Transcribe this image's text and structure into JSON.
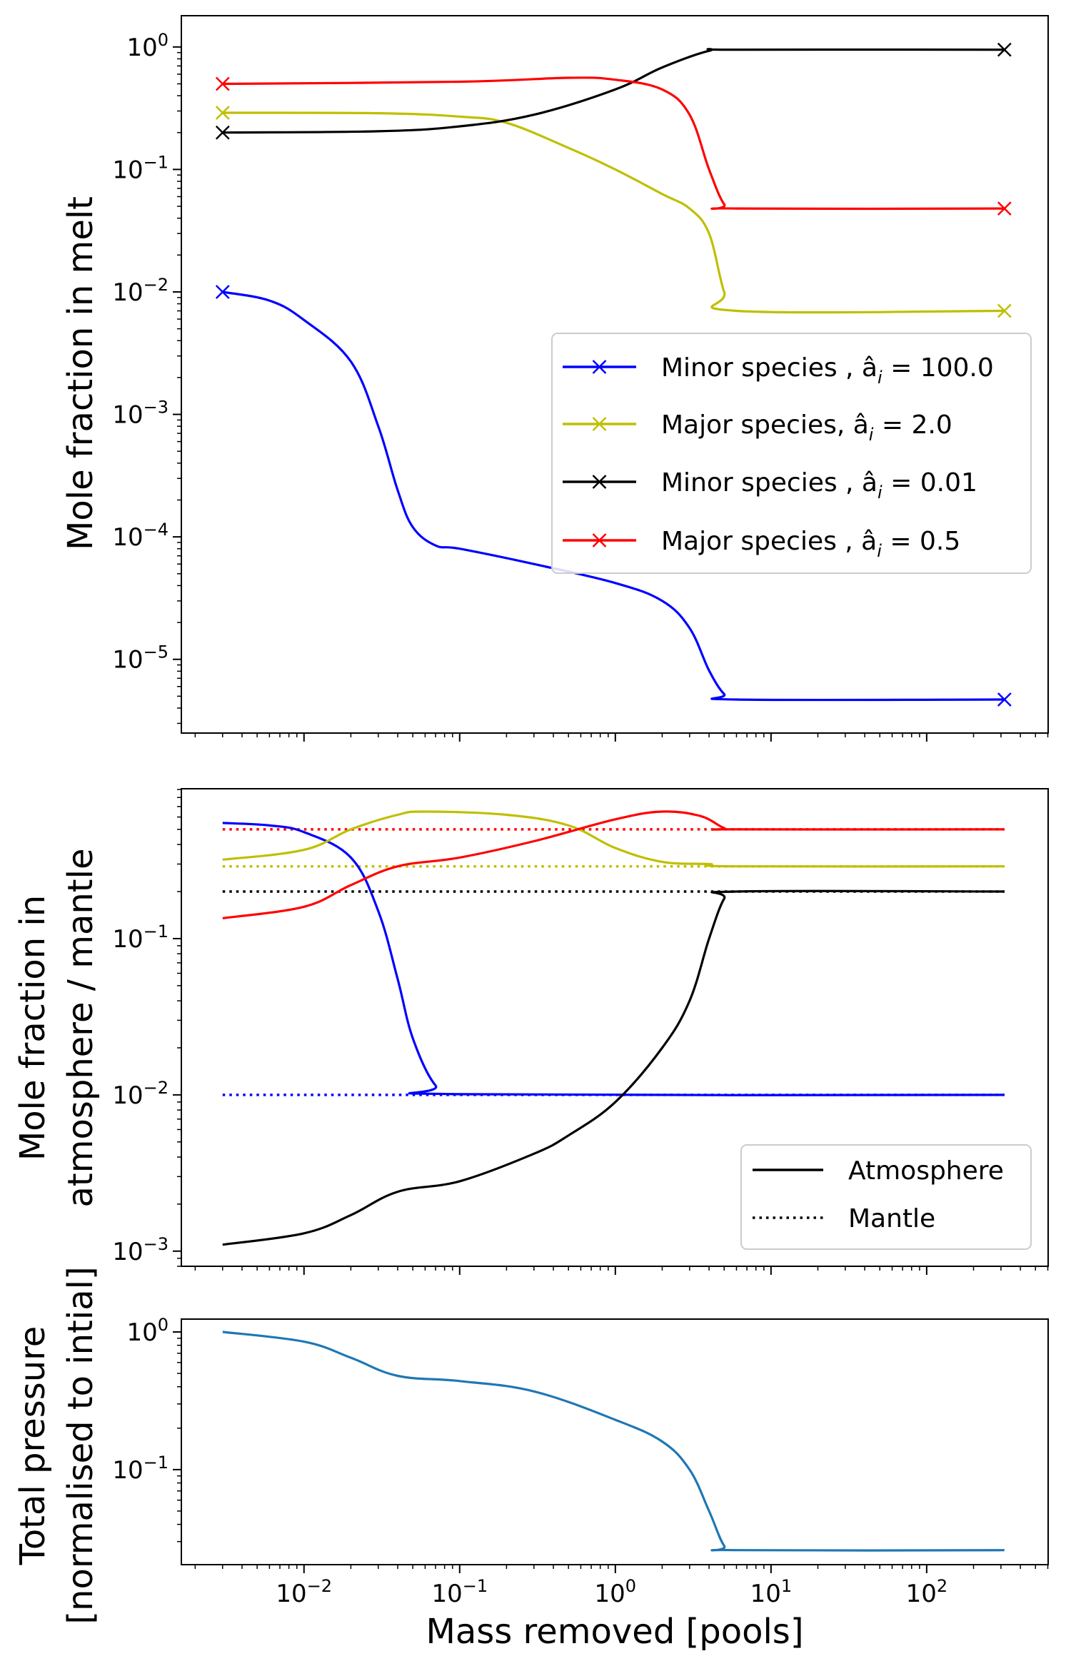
{
  "chart_data": [
    {
      "type": "line",
      "id": "melt",
      "ylabel": [
        "Mole fraction in melt"
      ],
      "xscale": "log",
      "yscale": "log",
      "xlim": [
        0.00163,
        603
      ],
      "ylim": [
        2.5e-06,
        1.8
      ],
      "yticks": [
        {
          "v": 1,
          "e": "0"
        },
        {
          "v": 0.1,
          "e": "−1"
        },
        {
          "v": 0.01,
          "e": "−2"
        },
        {
          "v": 0.001,
          "e": "−3"
        },
        {
          "v": 0.0001,
          "e": "−4"
        },
        {
          "v": 1e-05,
          "e": "−5"
        }
      ],
      "show_xtick_labels": false,
      "legend": {
        "placement": "center-right",
        "entries": [
          {
            "label": "Minor species , â",
            "sub": "i",
            "value": " = 100.0",
            "color": "#0000ff",
            "style": "solid-x"
          },
          {
            "label": "Major species, â",
            "sub": "i",
            "value": " = 2.0",
            "color": "#bfbf00",
            "style": "solid-x"
          },
          {
            "label": "Minor species , â",
            "sub": "i",
            "value": " = 0.01",
            "color": "#000000",
            "style": "solid-x"
          },
          {
            "label": "Major species , â",
            "sub": "i",
            "value": " = 0.5",
            "color": "#ff0000",
            "style": "solid-x"
          }
        ]
      },
      "series": [
        {
          "name": "Minor species a=100.0",
          "color": "#0000ff",
          "style": "solid",
          "endmarkers": true,
          "x": [
            0.003,
            0.006,
            0.01,
            0.02,
            0.03,
            0.04,
            0.05,
            0.07,
            0.1,
            0.3,
            1,
            2,
            3,
            4,
            5,
            6,
            316
          ],
          "y": [
            0.01,
            0.0085,
            0.0059,
            0.0027,
            0.0008,
            0.00024,
            0.00012,
            8.5e-05,
            8e-05,
            6e-05,
            4.2e-05,
            3e-05,
            1.8e-05,
            8.1e-06,
            5.2e-06,
            4.7e-06,
            4.7e-06
          ]
        },
        {
          "name": "Major species a=2.0",
          "color": "#bfbf00",
          "style": "solid",
          "endmarkers": true,
          "x": [
            0.003,
            0.03,
            0.1,
            0.2,
            0.5,
            1,
            2,
            3,
            4,
            5,
            6,
            316
          ],
          "y": [
            0.29,
            0.288,
            0.27,
            0.24,
            0.15,
            0.1,
            0.063,
            0.048,
            0.03,
            0.01,
            0.007,
            0.007
          ]
        },
        {
          "name": "Minor species a=0.01",
          "color": "#000000",
          "style": "solid",
          "endmarkers": true,
          "x": [
            0.003,
            0.03,
            0.1,
            0.3,
            1,
            2,
            4,
            6,
            316
          ],
          "y": [
            0.2,
            0.205,
            0.225,
            0.28,
            0.45,
            0.68,
            0.93,
            0.95,
            0.95
          ]
        },
        {
          "name": "Major species a=0.5",
          "color": "#ff0000",
          "style": "solid",
          "endmarkers": true,
          "x": [
            0.003,
            0.1,
            0.5,
            1,
            2,
            3,
            4,
            5,
            6,
            316
          ],
          "y": [
            0.5,
            0.52,
            0.56,
            0.54,
            0.45,
            0.28,
            0.1,
            0.052,
            0.048,
            0.048
          ]
        }
      ]
    },
    {
      "type": "line",
      "id": "atmosphere",
      "ylabel": [
        "Mole fraction in",
        "atmosphere / mantle"
      ],
      "xscale": "log",
      "yscale": "log",
      "xlim": [
        0.00163,
        603
      ],
      "ylim": [
        0.0008,
        0.91
      ],
      "yticks": [
        {
          "v": 0.1,
          "e": "−1"
        },
        {
          "v": 0.01,
          "e": "−2"
        },
        {
          "v": 0.001,
          "e": "−3"
        }
      ],
      "show_xtick_labels": false,
      "legend": {
        "placement": "lower-right",
        "entries": [
          {
            "label": "Atmosphere",
            "color": "#000000",
            "style": "solid"
          },
          {
            "label": "Mantle",
            "color": "#000000",
            "style": "dotted"
          }
        ]
      },
      "series": [
        {
          "name": "Minor a=100.0 mantle",
          "color": "#0000ff",
          "style": "dotted",
          "x": [
            0.003,
            316
          ],
          "y": [
            0.01,
            0.01
          ]
        },
        {
          "name": "Major a=2.0 mantle",
          "color": "#bfbf00",
          "style": "dotted",
          "x": [
            0.003,
            316
          ],
          "y": [
            0.29,
            0.29
          ]
        },
        {
          "name": "Minor a=0.01 mantle",
          "color": "#000000",
          "style": "dotted",
          "x": [
            0.003,
            316
          ],
          "y": [
            0.2,
            0.2
          ]
        },
        {
          "name": "Major a=0.5 mantle",
          "color": "#ff0000",
          "style": "dotted",
          "x": [
            0.003,
            316
          ],
          "y": [
            0.5,
            0.5
          ]
        },
        {
          "name": "Minor a=100.0 atmosphere",
          "color": "#0000ff",
          "style": "solid",
          "x": [
            0.003,
            0.006,
            0.01,
            0.02,
            0.03,
            0.04,
            0.05,
            0.07,
            0.1,
            316
          ],
          "y": [
            0.55,
            0.53,
            0.48,
            0.33,
            0.15,
            0.055,
            0.023,
            0.0115,
            0.0101,
            0.01
          ]
        },
        {
          "name": "Major a=2.0 atmosphere",
          "color": "#bfbf00",
          "style": "solid",
          "x": [
            0.003,
            0.01,
            0.02,
            0.04,
            0.06,
            0.2,
            0.5,
            1,
            2,
            4,
            6,
            316
          ],
          "y": [
            0.32,
            0.37,
            0.5,
            0.62,
            0.65,
            0.62,
            0.53,
            0.38,
            0.31,
            0.3,
            0.29,
            0.29
          ]
        },
        {
          "name": "Major a=0.5 atmosphere",
          "color": "#ff0000",
          "style": "solid",
          "x": [
            0.003,
            0.01,
            0.02,
            0.04,
            0.1,
            0.3,
            1,
            2,
            3.5,
            5,
            6,
            316
          ],
          "y": [
            0.135,
            0.16,
            0.22,
            0.29,
            0.33,
            0.42,
            0.58,
            0.65,
            0.61,
            0.51,
            0.5,
            0.5
          ]
        },
        {
          "name": "Minor a=0.01 atmosphere",
          "color": "#000000",
          "style": "solid",
          "x": [
            0.003,
            0.01,
            0.02,
            0.04,
            0.1,
            0.3,
            0.5,
            1,
            2,
            3,
            4,
            5,
            6,
            316
          ],
          "y": [
            0.0011,
            0.0013,
            0.0017,
            0.0024,
            0.0028,
            0.0042,
            0.0055,
            0.009,
            0.02,
            0.04,
            0.1,
            0.18,
            0.2,
            0.2
          ]
        }
      ]
    },
    {
      "type": "line",
      "id": "pressure",
      "ylabel": [
        "Total pressure",
        "[normalised to intial]"
      ],
      "xlabel": "Mass removed [pools]",
      "xscale": "log",
      "yscale": "log",
      "xlim": [
        0.00163,
        603
      ],
      "ylim": [
        0.0204,
        1.24
      ],
      "yticks": [
        {
          "v": 1,
          "e": "0"
        },
        {
          "v": 0.1,
          "e": "−1"
        }
      ],
      "xticks": [
        {
          "v": 0.01,
          "e": "−2"
        },
        {
          "v": 0.1,
          "e": "−1"
        },
        {
          "v": 1,
          "e": "0"
        },
        {
          "v": 10,
          "e": "1"
        },
        {
          "v": 100,
          "e": "2"
        }
      ],
      "show_xtick_labels": true,
      "series": [
        {
          "name": "Total pressure",
          "color": "#1f77b4",
          "style": "solid",
          "x": [
            0.003,
            0.01,
            0.02,
            0.04,
            0.1,
            0.3,
            1,
            2,
            3,
            4,
            5,
            6,
            316
          ],
          "y": [
            1.0,
            0.85,
            0.65,
            0.48,
            0.44,
            0.37,
            0.23,
            0.16,
            0.1,
            0.05,
            0.028,
            0.026,
            0.026
          ]
        }
      ]
    }
  ]
}
